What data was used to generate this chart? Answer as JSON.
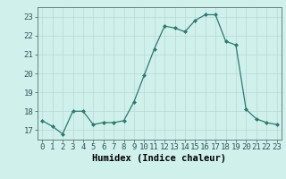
{
  "x": [
    0,
    1,
    2,
    3,
    4,
    5,
    6,
    7,
    8,
    9,
    10,
    11,
    12,
    13,
    14,
    15,
    16,
    17,
    18,
    19,
    20,
    21,
    22,
    23
  ],
  "y": [
    17.5,
    17.2,
    16.8,
    18.0,
    18.0,
    17.3,
    17.4,
    17.4,
    17.5,
    18.5,
    19.9,
    21.3,
    22.5,
    22.4,
    22.2,
    22.8,
    23.1,
    23.1,
    21.7,
    21.5,
    18.1,
    17.6,
    17.4,
    17.3
  ],
  "xlabel": "Humidex (Indice chaleur)",
  "ylim": [
    16.5,
    23.5
  ],
  "xlim": [
    -0.5,
    23.5
  ],
  "yticks": [
    17,
    18,
    19,
    20,
    21,
    22,
    23
  ],
  "xticks": [
    0,
    1,
    2,
    3,
    4,
    5,
    6,
    7,
    8,
    9,
    10,
    11,
    12,
    13,
    14,
    15,
    16,
    17,
    18,
    19,
    20,
    21,
    22,
    23
  ],
  "line_color": "#2d7a6e",
  "marker": "D",
  "marker_size": 2.0,
  "bg_color": "#d0f0ec",
  "grid_color": "#b8d8d4",
  "xlabel_fontsize": 7.5,
  "tick_fontsize": 6.5
}
